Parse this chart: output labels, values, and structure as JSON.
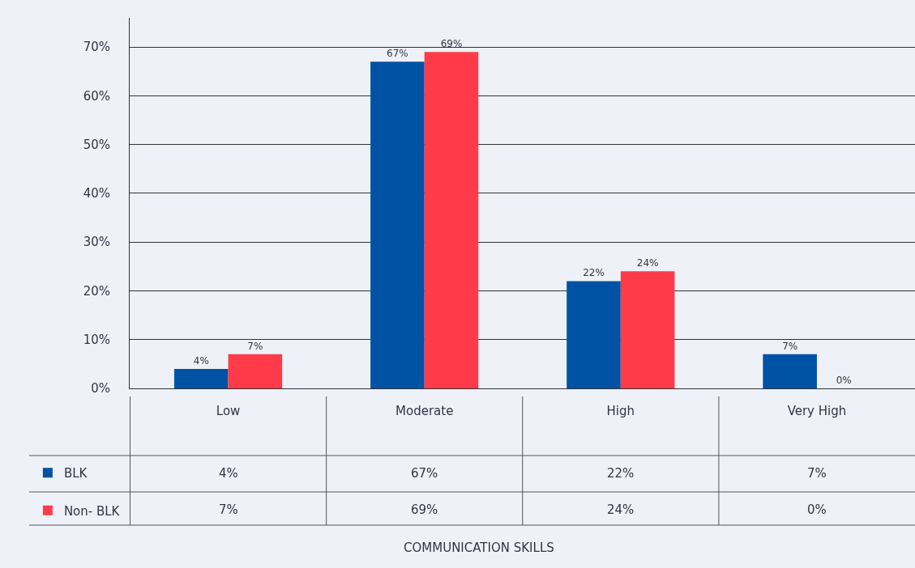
{
  "chart_data": {
    "type": "bar",
    "annotations": [
      "COMMUNICATION SKILLS"
    ],
    "categories": [
      "Low",
      "Moderate",
      "High",
      "Very High"
    ],
    "series": [
      {
        "name": "BLK",
        "color": "#0052a5",
        "values": [
          4,
          67,
          22,
          7
        ],
        "value_labels": [
          "4%",
          "67%",
          "22%",
          "7%"
        ]
      },
      {
        "name": "Non- BLK",
        "color": "#ff3b4a",
        "values": [
          7,
          69,
          24,
          0
        ],
        "value_labels": [
          "7%",
          "69%",
          "24%",
          "0%"
        ]
      }
    ],
    "ylim": [
      0,
      76
    ],
    "yticks": [
      {
        "value": 0,
        "label": "0%"
      },
      {
        "value": 10,
        "label": "10%"
      },
      {
        "value": 20,
        "label": "20%"
      },
      {
        "value": 30,
        "label": "30%"
      },
      {
        "value": 40,
        "label": "40%"
      },
      {
        "value": 50,
        "label": "50%"
      },
      {
        "value": 60,
        "label": "60%"
      },
      {
        "value": 70,
        "label": "70%"
      }
    ],
    "grid": "y",
    "legend": "bottom left"
  }
}
